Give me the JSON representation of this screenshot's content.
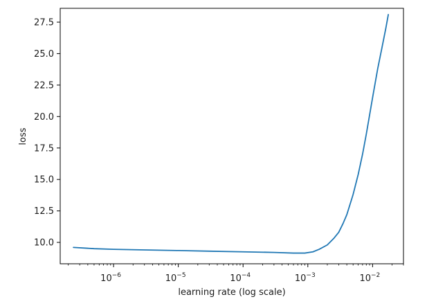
{
  "chart_data": {
    "type": "line",
    "title": "",
    "xlabel": "learning rate (log scale)",
    "ylabel": "loss",
    "xscale": "log",
    "xlim": [
      1.5e-07,
      0.03
    ],
    "ylim": [
      8.3,
      28.6
    ],
    "grid": false,
    "legend": "none",
    "x_ticks": [
      {
        "value": 1e-06,
        "base": "10",
        "exp": "−6"
      },
      {
        "value": 1e-05,
        "base": "10",
        "exp": "−5"
      },
      {
        "value": 0.0001,
        "base": "10",
        "exp": "−4"
      },
      {
        "value": 0.001,
        "base": "10",
        "exp": "−3"
      },
      {
        "value": 0.01,
        "base": "10",
        "exp": "−2"
      }
    ],
    "y_ticks": [
      "10.0",
      "12.5",
      "15.0",
      "17.5",
      "20.0",
      "22.5",
      "25.0",
      "27.5"
    ],
    "series": [
      {
        "color": "#1f77b4",
        "x": [
          2.4e-07,
          5e-07,
          1e-06,
          3e-06,
          1e-05,
          3e-05,
          0.0001,
          0.0003,
          0.0006,
          0.0009,
          0.0012,
          0.0015,
          0.002,
          0.0025,
          0.003,
          0.0035,
          0.004,
          0.005,
          0.006,
          0.007,
          0.008,
          0.01,
          0.012,
          0.014,
          0.016,
          0.0175
        ],
        "y": [
          9.6,
          9.5,
          9.45,
          9.4,
          9.35,
          9.3,
          9.25,
          9.2,
          9.15,
          9.15,
          9.25,
          9.45,
          9.8,
          10.3,
          10.8,
          11.5,
          12.2,
          13.8,
          15.4,
          17.0,
          18.6,
          21.5,
          23.8,
          25.5,
          27.0,
          28.1
        ]
      }
    ]
  }
}
